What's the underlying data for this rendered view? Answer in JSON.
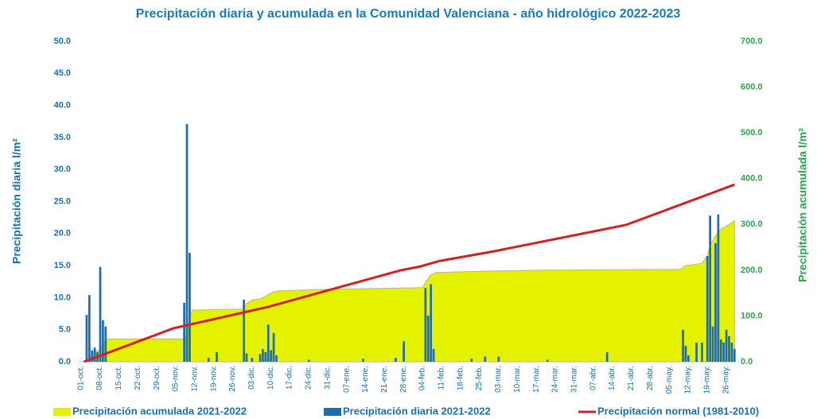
{
  "chart_data": {
    "type": "bar",
    "title": "Precipitación diaria y acumulada en la Comunidad Valenciana - año hidrológico 2022-2023",
    "y_label": "Precipitación diaria l/m²",
    "y2_label": "Precipitación acumulada l/m²",
    "categories": [
      "01-oct.",
      null,
      null,
      null,
      null,
      null,
      null,
      "08-oct.",
      null,
      null,
      null,
      null,
      null,
      null,
      "15-oct.",
      null,
      null,
      null,
      null,
      null,
      null,
      "22-oct.",
      null,
      null,
      null,
      null,
      null,
      null,
      "29-oct.",
      null,
      null,
      null,
      null,
      null,
      null,
      "05-nov.",
      null,
      null,
      null,
      null,
      null,
      null,
      "12-nov.",
      null,
      null,
      null,
      null,
      null,
      null,
      "19-nov.",
      null,
      null,
      null,
      null,
      null,
      null,
      "26-nov.",
      null,
      null,
      null,
      null,
      null,
      null,
      "03-dic.",
      null,
      null,
      null,
      null,
      null,
      null,
      "10-dic.",
      null,
      null,
      null,
      null,
      null,
      null,
      "17-dic.",
      null,
      null,
      null,
      null,
      null,
      null,
      "24-dic.",
      null,
      null,
      null,
      null,
      null,
      null,
      "31-dic.",
      null,
      null,
      null,
      null,
      null,
      null,
      "07-ene.",
      null,
      null,
      null,
      null,
      null,
      null,
      "14-ene.",
      null,
      null,
      null,
      null,
      null,
      null,
      "21-ene.",
      null,
      null,
      null,
      null,
      null,
      null,
      "28-ene.",
      null,
      null,
      null,
      null,
      null,
      null,
      "04-feb.",
      null,
      null,
      null,
      null,
      null,
      null,
      "11-feb.",
      null,
      null,
      null,
      null,
      null,
      null,
      "18-feb.",
      null,
      null,
      null,
      null,
      null,
      null,
      "25-feb.",
      null,
      null,
      null,
      null,
      null,
      null,
      "03-mar.",
      null,
      null,
      null,
      null,
      null,
      null,
      "10-mar.",
      null,
      null,
      null,
      null,
      null,
      null,
      "17-mar.",
      null,
      null,
      null,
      null,
      null,
      null,
      "24-mar.",
      null,
      null,
      null,
      null,
      null,
      null,
      "31-mar.",
      null,
      null,
      null,
      null,
      null,
      null,
      "07-abr.",
      null,
      null,
      null,
      null,
      null,
      null,
      "14-abr.",
      null,
      null,
      null,
      null,
      null,
      null,
      "21-abr.",
      null,
      null,
      null,
      null,
      null,
      null,
      "28-abr.",
      null,
      null,
      null,
      null,
      null,
      null,
      "05-may.",
      null,
      null,
      null,
      null,
      null,
      null,
      "12-may.",
      null,
      null,
      null,
      null,
      null,
      null,
      "19-may.",
      null,
      null,
      null,
      null,
      null,
      null,
      "26-may.",
      null,
      null,
      null,
      null
    ],
    "ylim": [
      0,
      50
    ],
    "yticks": [
      {
        "value": 0,
        "label": "0.0"
      },
      {
        "value": 5,
        "label": "5.0"
      },
      {
        "value": 10,
        "label": "10.0"
      },
      {
        "value": 15,
        "label": "15.0"
      },
      {
        "value": 20,
        "label": "20.0"
      },
      {
        "value": 25,
        "label": "25.0"
      },
      {
        "value": 30,
        "label": "30.0"
      },
      {
        "value": 35,
        "label": "35.0"
      },
      {
        "value": 40,
        "label": "40.0"
      },
      {
        "value": 45,
        "label": "45.0"
      },
      {
        "value": 50,
        "label": "50.0"
      }
    ],
    "y2lim": [
      0,
      700
    ],
    "y2ticks": [
      {
        "value": 0,
        "label": "0.0"
      },
      {
        "value": 100,
        "label": "100.0"
      },
      {
        "value": 200,
        "label": "200.0"
      },
      {
        "value": 300,
        "label": "300.0"
      },
      {
        "value": 400,
        "label": "400.0"
      },
      {
        "value": 500,
        "label": "500.0"
      },
      {
        "value": 600,
        "label": "600.0"
      },
      {
        "value": 700,
        "label": "700.0"
      }
    ],
    "series": [
      {
        "name": "Precipitación acumulada 2021-2022",
        "type": "area",
        "axis": "y2",
        "color": "#e4f200",
        "x": [
          0,
          3,
          4,
          5,
          8,
          9,
          11,
          39,
          40,
          41,
          42,
          61,
          62,
          64,
          67,
          72,
          74,
          90,
          110,
          127,
          128,
          130,
          132,
          150,
          170,
          222,
          224,
          230,
          232,
          233,
          235,
          237,
          240,
          242
        ],
        "values": [
          0,
          0,
          7,
          18,
          26,
          41,
          50,
          50,
          59,
          96,
          113,
          115,
          127,
          135,
          137,
          153,
          155,
          158,
          160,
          162,
          174,
          190,
          195,
          198,
          200,
          202,
          210,
          215,
          232,
          255,
          275,
          290,
          300,
          308
        ]
      },
      {
        "name": "Precipitación diaria 2021-2022",
        "type": "bar",
        "color": "#1f6cb0",
        "values": [
          0,
          0,
          0,
          7.3,
          10.4,
          1.8,
          2.2,
          1.5,
          14.8,
          6.5,
          5.5,
          0,
          0,
          0,
          0,
          0,
          0,
          0,
          0,
          0,
          0,
          0,
          0,
          0,
          0,
          0,
          0,
          0,
          0,
          0,
          0,
          0,
          0,
          0,
          0,
          0,
          0,
          0,
          0,
          9.2,
          37.1,
          17.0,
          0,
          0,
          0,
          0,
          0,
          0,
          0.6,
          0,
          0,
          1.5,
          0,
          0,
          0,
          0,
          0,
          0,
          0,
          0,
          0,
          9.7,
          1.3,
          0,
          0.6,
          0,
          0,
          1.2,
          2.0,
          1.5,
          5.8,
          1.8,
          4.5,
          1.0,
          0,
          0,
          0,
          0,
          0,
          0,
          0,
          0,
          0,
          0,
          0,
          0.3,
          0,
          0,
          0,
          0,
          0,
          0,
          0,
          0,
          0,
          0,
          0,
          0,
          0,
          0,
          0,
          0,
          0,
          0,
          0,
          0.5,
          0,
          0,
          0,
          0,
          0,
          0,
          0,
          0,
          0,
          0,
          0,
          0.6,
          0,
          0,
          3.2,
          0,
          0,
          0,
          0,
          0,
          0,
          0,
          11.5,
          7.2,
          12.1,
          2.0,
          0,
          0,
          0,
          0,
          0,
          0,
          0,
          0,
          0,
          0,
          0,
          0,
          0,
          0.5,
          0,
          0,
          0,
          0,
          0.8,
          0,
          0,
          0,
          0,
          0.8,
          0,
          0,
          0,
          0,
          0,
          0,
          0,
          0,
          0,
          0,
          0,
          0,
          0,
          0,
          0,
          0,
          0,
          0.3,
          0,
          0,
          0,
          0,
          0,
          0,
          0,
          0,
          0,
          0,
          0,
          0,
          0,
          0,
          0,
          0,
          0,
          0,
          0,
          0,
          0,
          1.5,
          0,
          0,
          0,
          0,
          0,
          0,
          0,
          0,
          0,
          0,
          0,
          0,
          0,
          0,
          0,
          0,
          0,
          0,
          0,
          0,
          0,
          0,
          0,
          0,
          0,
          0,
          0,
          5.0,
          2.5,
          1.0,
          0,
          0,
          3.0,
          0,
          3.0,
          0,
          16.5,
          22.8,
          5.5,
          18.5,
          23.0,
          3.5,
          3.0,
          5.0,
          4.0,
          3.0,
          2.0
        ]
      },
      {
        "name": "Precipitación normal (1981-2010)",
        "type": "line",
        "axis": "y2",
        "color": "#d42020",
        "x": [
          2,
          35,
          70,
          119,
          126,
          133,
          153,
          202,
          242
        ],
        "values": [
          0,
          73,
          120,
          200,
          208,
          220,
          241,
          299,
          387
        ]
      }
    ]
  }
}
